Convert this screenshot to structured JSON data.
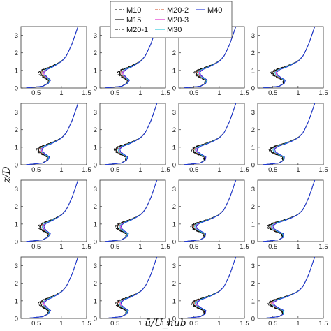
{
  "chart_data": {
    "type": "line",
    "layout": "4x4 grid of subplots",
    "xlabel": "ū/U_hub",
    "ylabel": "z/D",
    "xlim": [
      0.2,
      1.5
    ],
    "ylim": [
      0,
      3.5
    ],
    "xticks": [
      "0.5",
      "1",
      "1.5"
    ],
    "yticks": [
      "0",
      "1",
      "2",
      "3"
    ],
    "grid": false,
    "legend_position": "top-center",
    "series": [
      {
        "name": "M10",
        "color": "#000000",
        "dash": "4,2",
        "offset": -0.06
      },
      {
        "name": "M15",
        "color": "#000000",
        "dash": "",
        "offset": -0.03
      },
      {
        "name": "M20-1",
        "color": "#000000",
        "dash": "5,2,1,2",
        "offset": -0.015
      },
      {
        "name": "M20-2",
        "color": "#d2481f",
        "dash": "4,2,1,2",
        "offset": 0.0
      },
      {
        "name": "M20-3",
        "color": "#e020c8",
        "dash": "",
        "offset": 0.04
      },
      {
        "name": "M30",
        "color": "#1fc7d8",
        "dash": "",
        "offset": 0.02
      },
      {
        "name": "M40",
        "color": "#1a2fd6",
        "dash": "",
        "offset": 0.06
      }
    ],
    "profile_template": {
      "z": [
        0.0,
        0.1,
        0.25,
        0.45,
        0.6,
        0.75,
        0.9,
        1.05,
        1.2,
        1.35,
        1.5,
        1.6,
        1.8,
        2.0,
        2.25,
        2.5,
        2.75,
        3.0,
        3.25,
        3.5
      ],
      "u": [
        0.3,
        0.62,
        0.7,
        0.68,
        0.55,
        0.45,
        0.43,
        0.52,
        0.7,
        0.85,
        0.97,
        1.02,
        1.09,
        1.13,
        1.17,
        1.21,
        1.24,
        1.27,
        1.3,
        1.33
      ]
    },
    "panels": [
      {
        "row": 1,
        "col": 1,
        "wake_deficit": 0.3
      },
      {
        "row": 1,
        "col": 2,
        "wake_deficit": 0.3
      },
      {
        "row": 1,
        "col": 3,
        "wake_deficit": 0.22
      },
      {
        "row": 1,
        "col": 4,
        "wake_deficit": 0.15
      },
      {
        "row": 2,
        "col": 1,
        "wake_deficit": 0.22
      },
      {
        "row": 2,
        "col": 2,
        "wake_deficit": 0.18
      },
      {
        "row": 2,
        "col": 3,
        "wake_deficit": 0.12
      },
      {
        "row": 2,
        "col": 4,
        "wake_deficit": 0.08
      },
      {
        "row": 3,
        "col": 1,
        "wake_deficit": 0.28
      },
      {
        "row": 3,
        "col": 2,
        "wake_deficit": 0.22
      },
      {
        "row": 3,
        "col": 3,
        "wake_deficit": 0.1
      },
      {
        "row": 3,
        "col": 4,
        "wake_deficit": 0.02
      },
      {
        "row": 4,
        "col": 1,
        "wake_deficit": 0.3
      },
      {
        "row": 4,
        "col": 2,
        "wake_deficit": 0.22
      },
      {
        "row": 4,
        "col": 3,
        "wake_deficit": 0.12
      },
      {
        "row": 4,
        "col": 4,
        "wake_deficit": 0.05
      }
    ]
  }
}
